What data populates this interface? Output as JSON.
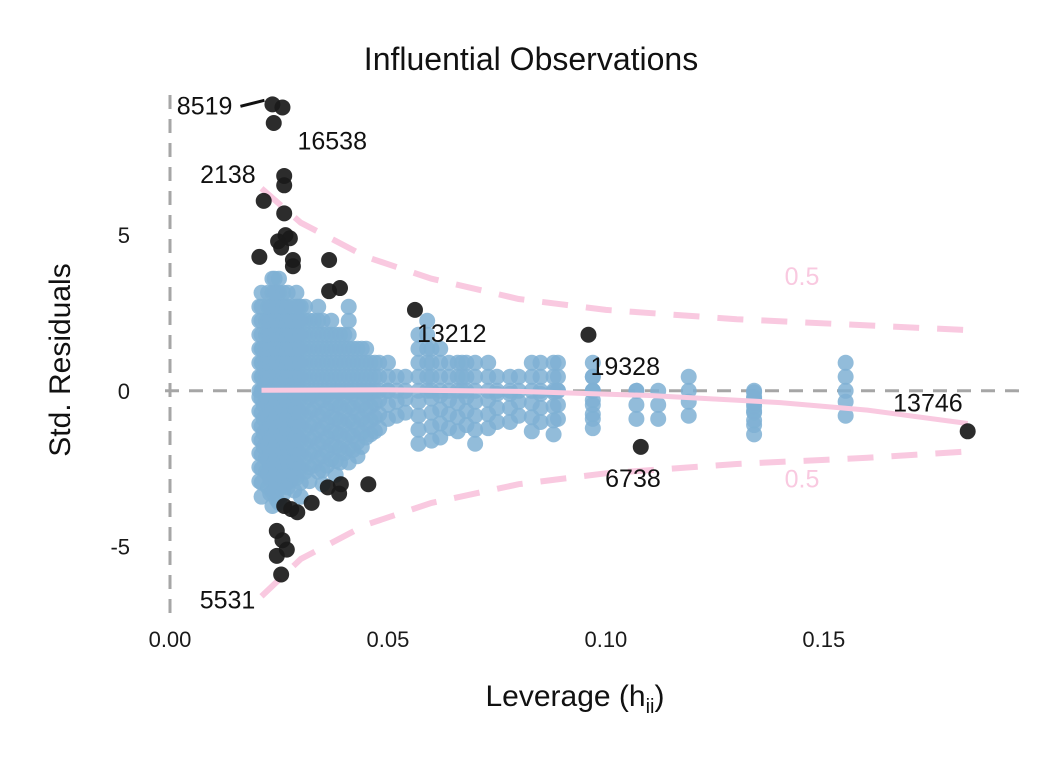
{
  "chart_data": {
    "type": "scatter",
    "title": "Influential Observations",
    "xlabel_main": "Leverage (h",
    "xlabel_sub": "ii",
    "xlabel_close": ")",
    "ylabel": "Std. Residuals",
    "xlim": [
      0,
      0.195
    ],
    "ylim": [
      -7.2,
      9.5
    ],
    "x_ticks": [
      {
        "value": 0.0,
        "label": "0.00"
      },
      {
        "value": 0.05,
        "label": "0.05"
      },
      {
        "value": 0.1,
        "label": "0.10"
      },
      {
        "value": 0.15,
        "label": "0.15"
      }
    ],
    "y_ticks": [
      {
        "value": 5,
        "label": "5"
      },
      {
        "value": 0,
        "label": "0"
      },
      {
        "value": -5,
        "label": "-5"
      }
    ],
    "grid": false,
    "colors": {
      "normal": "#7fb0d4",
      "influential": "#1a1a1a",
      "contour": "#f9c9e0",
      "zero_line": "#a6a6a6"
    },
    "cooks_distance_level": "0.5",
    "normal_points": [
      [
        0.0205,
        2.8
      ],
      [
        0.0205,
        -2.9
      ],
      [
        0.021,
        3.2
      ],
      [
        0.021,
        -3.4
      ],
      [
        0.0212,
        1.5
      ],
      [
        0.0215,
        -1.8
      ],
      [
        0.022,
        2.4
      ],
      [
        0.022,
        -2.6
      ],
      [
        0.0225,
        3.6
      ],
      [
        0.0225,
        -3.1
      ],
      [
        0.023,
        2.9
      ],
      [
        0.023,
        -3.3
      ],
      [
        0.0235,
        3.8
      ],
      [
        0.0235,
        -3.7
      ],
      [
        0.024,
        4.0
      ],
      [
        0.024,
        -3.2
      ],
      [
        0.0245,
        3.4
      ],
      [
        0.0245,
        -3.5
      ],
      [
        0.025,
        3.7
      ],
      [
        0.025,
        -3.6
      ],
      [
        0.0255,
        2.6
      ],
      [
        0.0255,
        -2.8
      ],
      [
        0.026,
        3.5
      ],
      [
        0.026,
        -3.3
      ],
      [
        0.0265,
        2.9
      ],
      [
        0.0265,
        -3.0
      ],
      [
        0.027,
        3.3
      ],
      [
        0.027,
        -3.1
      ],
      [
        0.0275,
        2.4
      ],
      [
        0.0275,
        -2.9
      ],
      [
        0.028,
        3.1
      ],
      [
        0.028,
        -2.7
      ],
      [
        0.0285,
        2.6
      ],
      [
        0.0285,
        -3.2
      ],
      [
        0.029,
        3.6
      ],
      [
        0.029,
        -2.8
      ],
      [
        0.0295,
        2.8
      ],
      [
        0.0295,
        -2.5
      ],
      [
        0.03,
        2.9
      ],
      [
        0.03,
        -3.4
      ],
      [
        0.031,
        2.7
      ],
      [
        0.031,
        -2.6
      ],
      [
        0.032,
        2.5
      ],
      [
        0.032,
        -2.9
      ],
      [
        0.033,
        2.3
      ],
      [
        0.033,
        -2.4
      ],
      [
        0.034,
        2.9
      ],
      [
        0.034,
        -2.6
      ],
      [
        0.035,
        2.6
      ],
      [
        0.035,
        -3.0
      ],
      [
        0.036,
        2.2
      ],
      [
        0.036,
        -2.4
      ],
      [
        0.037,
        2.4
      ],
      [
        0.037,
        -2.2
      ],
      [
        0.038,
        2.0
      ],
      [
        0.038,
        -2.7
      ],
      [
        0.039,
        2.1
      ],
      [
        0.039,
        -2.3
      ],
      [
        0.04,
        1.9
      ],
      [
        0.04,
        -2.0
      ],
      [
        0.041,
        2.9
      ],
      [
        0.041,
        -2.3
      ],
      [
        0.042,
        1.7
      ],
      [
        0.042,
        -1.9
      ],
      [
        0.043,
        1.6
      ],
      [
        0.043,
        -2.1
      ],
      [
        0.044,
        1.5
      ],
      [
        0.044,
        -1.8
      ],
      [
        0.045,
        1.4
      ],
      [
        0.045,
        -1.5
      ],
      [
        0.046,
        1.3
      ],
      [
        0.046,
        -1.4
      ],
      [
        0.047,
        1.1
      ],
      [
        0.047,
        -1.3
      ],
      [
        0.048,
        1.0
      ],
      [
        0.048,
        -1.2
      ],
      [
        0.05,
        0.9
      ],
      [
        0.05,
        -0.9
      ],
      [
        0.052,
        0.7
      ],
      [
        0.052,
        -0.8
      ],
      [
        0.054,
        0.6
      ],
      [
        0.054,
        -0.7
      ],
      [
        0.057,
        1.9
      ],
      [
        0.057,
        -1.7
      ],
      [
        0.059,
        2.4
      ],
      [
        0.06,
        1.7
      ],
      [
        0.06,
        -1.6
      ],
      [
        0.062,
        1.5
      ],
      [
        0.062,
        -1.5
      ],
      [
        0.064,
        1.3
      ],
      [
        0.064,
        -1.2
      ],
      [
        0.066,
        1.1
      ],
      [
        0.066,
        -1.3
      ],
      [
        0.067,
        1.2
      ],
      [
        0.068,
        1.0
      ],
      [
        0.068,
        -1.1
      ],
      [
        0.07,
        0.9
      ],
      [
        0.07,
        -1.7
      ],
      [
        0.073,
        0.9
      ],
      [
        0.073,
        -1.2
      ],
      [
        0.075,
        0.8
      ],
      [
        0.075,
        -1.0
      ],
      [
        0.078,
        0.8
      ],
      [
        0.078,
        -1.0
      ],
      [
        0.08,
        0.8
      ],
      [
        0.08,
        -0.8
      ],
      [
        0.083,
        1.3
      ],
      [
        0.083,
        -1.3
      ],
      [
        0.085,
        1.0
      ],
      [
        0.085,
        -1.0
      ],
      [
        0.088,
        1.3
      ],
      [
        0.088,
        -1.4
      ],
      [
        0.089,
        0.9
      ],
      [
        0.089,
        -0.9
      ],
      [
        0.097,
        1.3
      ],
      [
        0.097,
        -1.2
      ],
      [
        0.097,
        0.8
      ],
      [
        0.097,
        -0.9
      ],
      [
        0.107,
        0.3
      ],
      [
        0.107,
        -0.9
      ],
      [
        0.112,
        -0.9
      ],
      [
        0.119,
        0.5
      ],
      [
        0.119,
        -0.8
      ],
      [
        0.134,
        0.4
      ],
      [
        0.134,
        -0.4
      ],
      [
        0.134,
        -0.7
      ],
      [
        0.134,
        -1.1
      ],
      [
        0.134,
        -1.4
      ],
      [
        0.155,
        0.95
      ],
      [
        0.155,
        -0.8
      ]
    ],
    "influential_points": [
      [
        0.0235,
        9.2
      ],
      [
        0.0258,
        9.1
      ],
      [
        0.0238,
        8.6
      ],
      [
        0.0262,
        6.9
      ],
      [
        0.0262,
        6.6
      ],
      [
        0.0215,
        6.1
      ],
      [
        0.0262,
        5.7
      ],
      [
        0.0265,
        5.0
      ],
      [
        0.0248,
        4.8
      ],
      [
        0.0275,
        4.9
      ],
      [
        0.0255,
        4.6
      ],
      [
        0.0205,
        4.3
      ],
      [
        0.0282,
        4.2
      ],
      [
        0.0282,
        4.0
      ],
      [
        0.0365,
        4.2
      ],
      [
        0.0365,
        3.2
      ],
      [
        0.039,
        3.3
      ],
      [
        0.0562,
        2.6
      ],
      [
        0.096,
        1.8
      ],
      [
        0.0262,
        -3.7
      ],
      [
        0.0278,
        -3.8
      ],
      [
        0.0292,
        -3.9
      ],
      [
        0.0325,
        -3.6
      ],
      [
        0.0362,
        -3.1
      ],
      [
        0.0392,
        -3.0
      ],
      [
        0.0388,
        -3.3
      ],
      [
        0.0455,
        -3.0
      ],
      [
        0.108,
        -1.8
      ],
      [
        0.0245,
        -4.5
      ],
      [
        0.0258,
        -4.8
      ],
      [
        0.0268,
        -5.1
      ],
      [
        0.0245,
        -5.3
      ],
      [
        0.0255,
        -5.9
      ],
      [
        0.183,
        -1.3
      ]
    ],
    "loess_curve": [
      [
        0.021,
        0.02
      ],
      [
        0.05,
        0.03
      ],
      [
        0.08,
        -0.02
      ],
      [
        0.11,
        -0.15
      ],
      [
        0.14,
        -0.38
      ],
      [
        0.16,
        -0.62
      ],
      [
        0.183,
        -1.05
      ]
    ],
    "contour_upper": [
      [
        0.021,
        6.5
      ],
      [
        0.03,
        5.4
      ],
      [
        0.045,
        4.3
      ],
      [
        0.06,
        3.6
      ],
      [
        0.08,
        2.95
      ],
      [
        0.1,
        2.6
      ],
      [
        0.13,
        2.3
      ],
      [
        0.16,
        2.1
      ],
      [
        0.183,
        1.95
      ]
    ],
    "contour_lower": [
      [
        0.021,
        -6.6
      ],
      [
        0.03,
        -5.4
      ],
      [
        0.045,
        -4.3
      ],
      [
        0.06,
        -3.6
      ],
      [
        0.08,
        -3.0
      ],
      [
        0.1,
        -2.65
      ],
      [
        0.13,
        -2.35
      ],
      [
        0.16,
        -2.15
      ],
      [
        0.183,
        -1.95
      ]
    ],
    "contour_labels": [
      {
        "text": "0.5",
        "x": 0.145,
        "y": 3.4
      },
      {
        "text": "0.5",
        "x": 0.145,
        "y": -3.1
      }
    ],
    "point_labels": [
      {
        "text": "8519",
        "x": 0.0235,
        "y": 9.2,
        "anchor": "end"
      },
      {
        "text": "16538",
        "x": 0.0258,
        "y": 9.1,
        "anchor": "start"
      },
      {
        "text": "2138",
        "x": 0.0215,
        "y": 6.1,
        "anchor": "end"
      },
      {
        "text": "13212",
        "x": 0.0562,
        "y": 2.6,
        "anchor": "start"
      },
      {
        "text": "19328",
        "x": 0.096,
        "y": 1.8,
        "anchor": "start"
      },
      {
        "text": "13746",
        "x": 0.183,
        "y": -1.3,
        "anchor": "end"
      },
      {
        "text": "6738",
        "x": 0.108,
        "y": -1.8,
        "anchor": "end"
      },
      {
        "text": "5531",
        "x": 0.0205,
        "y": -6.6,
        "anchor": "end"
      }
    ]
  }
}
